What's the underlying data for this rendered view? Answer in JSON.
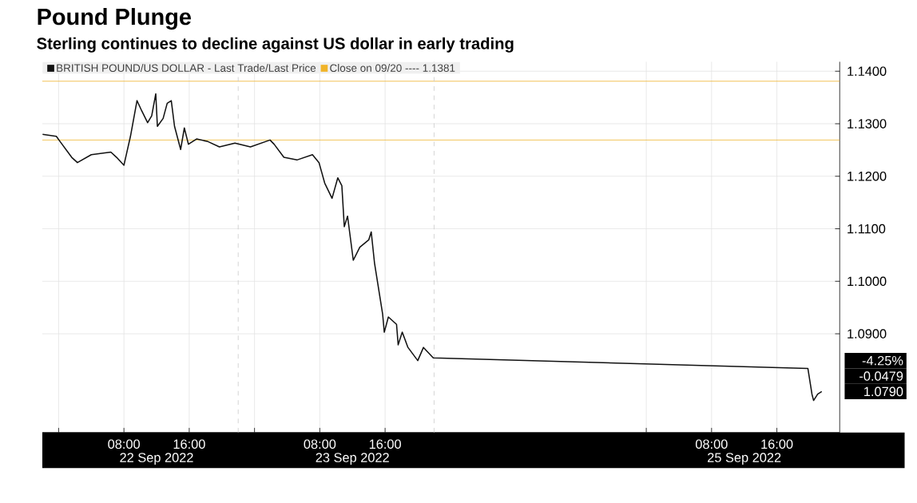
{
  "chart_data": {
    "type": "line",
    "title": "Pound Plunge",
    "subtitle": "Sterling continues to decline against US dollar in early trading",
    "x": [
      "2022-09-21T22:02",
      "2022-09-21T23:43",
      "2022-09-22T00:11",
      "2022-09-22T01:36",
      "2022-09-22T02:18",
      "2022-09-22T04:00",
      "2022-09-22T06:24",
      "2022-09-22T07:06",
      "2022-09-22T08:00",
      "2022-09-22T08:48",
      "2022-09-22T09:36",
      "2022-09-22T10:12",
      "2022-09-22T10:54",
      "2022-09-22T11:24",
      "2022-09-22T11:54",
      "2022-09-22T12:06",
      "2022-09-22T12:48",
      "2022-09-22T13:18",
      "2022-09-22T13:48",
      "2022-09-22T14:12",
      "2022-09-22T14:57",
      "2022-09-22T15:24",
      "2022-09-22T15:54",
      "2022-09-22T16:54",
      "2022-09-22T18:18",
      "2022-09-22T19:42",
      "2022-09-22T21:36",
      "2022-09-22T23:30",
      "2022-09-23T01:54",
      "2022-09-23T02:24",
      "2022-09-23T03:36",
      "2022-09-23T05:12",
      "2022-09-23T07:06",
      "2022-09-23T07:54",
      "2022-09-23T08:36",
      "2022-09-23T09:30",
      "2022-09-23T10:12",
      "2022-09-23T10:42",
      "2022-09-23T11:00",
      "2022-09-23T11:24",
      "2022-09-23T12:06",
      "2022-09-23T12:54",
      "2022-09-23T14:00",
      "2022-09-23T14:18",
      "2022-09-23T14:42",
      "2022-09-23T15:42",
      "2022-09-23T15:54",
      "2022-09-23T16:24",
      "2022-09-23T17:24",
      "2022-09-23T17:36",
      "2022-09-23T18:06",
      "2022-09-23T18:48",
      "2022-09-23T20:00",
      "2022-09-23T20:42",
      "2022-09-23T21:54",
      "2022-09-25T19:48",
      "2022-09-25T20:18",
      "2022-09-25T20:30",
      "2022-09-25T21:00",
      "2022-09-25T21:30"
    ],
    "series": [
      {
        "name": "BRITISH POUND/US DOLLAR - Last Trade/Last Price",
        "color": "#111111",
        "values": [
          1.128,
          1.1276,
          1.1266,
          1.1236,
          1.1226,
          1.1241,
          1.1246,
          1.1236,
          1.1221,
          1.1276,
          1.1344,
          1.1324,
          1.1302,
          1.1315,
          1.1357,
          1.1295,
          1.131,
          1.1339,
          1.1344,
          1.1295,
          1.1251,
          1.1292,
          1.1261,
          1.1271,
          1.1266,
          1.1256,
          1.1263,
          1.1256,
          1.1269,
          1.1261,
          1.1236,
          1.1231,
          1.1241,
          1.1226,
          1.1187,
          1.1158,
          1.1197,
          1.1182,
          1.1104,
          1.1124,
          1.104,
          1.1065,
          1.1079,
          1.1094,
          1.1035,
          1.0937,
          1.0903,
          1.0932,
          1.0918,
          1.0879,
          1.0903,
          1.0874,
          1.0849,
          1.0874,
          1.0854,
          1.0834,
          1.0785,
          1.0773,
          1.0785,
          1.079
        ]
      }
    ],
    "xlim": [
      "2022-09-21T22:00",
      "2022-09-25T23:42"
    ],
    "ylim": [
      1.0712,
      1.1418
    ],
    "xticks": [
      {
        "value": "2022-09-22T00:00",
        "label": null
      },
      {
        "value": "2022-09-22T08:00",
        "label": "08:00"
      },
      {
        "value": "2022-09-22T16:00",
        "label": "16:00"
      },
      {
        "value": "2022-09-23T00:00",
        "label": null
      },
      {
        "value": "2022-09-23T08:00",
        "label": "08:00"
      },
      {
        "value": "2022-09-23T16:00",
        "label": "16:00"
      },
      {
        "value": "2022-09-25T00:00",
        "label": null
      },
      {
        "value": "2022-09-25T08:00",
        "label": "08:00"
      },
      {
        "value": "2022-09-25T16:00",
        "label": "16:00"
      }
    ],
    "yticks": [
      {
        "value": 1.09,
        "label": "1.0900"
      },
      {
        "value": 1.1,
        "label": "1.1000"
      },
      {
        "value": 1.11,
        "label": "1.1100"
      },
      {
        "value": 1.12,
        "label": "1.1200"
      },
      {
        "value": 1.13,
        "label": "1.1300"
      },
      {
        "value": 1.14,
        "label": "1.1400"
      }
    ],
    "grid": true,
    "legend": "top left",
    "ref_lines": [
      {
        "axis": "y",
        "value": 1.1381,
        "label": "Close on 09/20 ---- 1.1381",
        "color": "#f0b429"
      },
      {
        "axis": "y",
        "value": 1.1269,
        "color": "#f0b429"
      },
      {
        "axis": "x",
        "value": "2022-09-22T22:00",
        "color": "#c8c8c8",
        "line_style": "dashed"
      },
      {
        "axis": "x",
        "value": "2022-09-23T22:00",
        "color": "#c8c8c8",
        "line_style": "dashed"
      }
    ],
    "annotations": [
      "-4.25%",
      "-0.0479",
      "1.0790",
      "22 Sep 2022",
      "23 Sep 2022",
      "25 Sep 2022"
    ]
  }
}
